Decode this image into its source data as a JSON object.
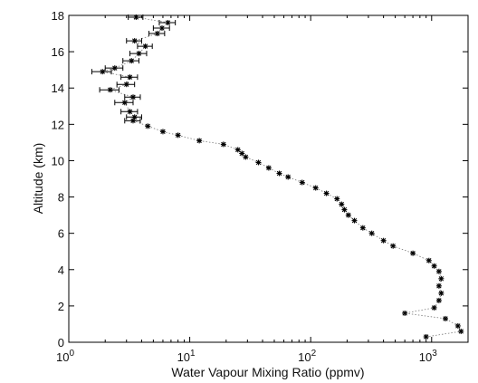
{
  "chart_data": {
    "type": "scatter",
    "title": "",
    "xlabel": "Water Vapour Mixing Ratio (ppmv)",
    "ylabel": "Altitude (km)",
    "xscale": "log",
    "xlim": [
      1,
      2000
    ],
    "ylim": [
      0,
      18
    ],
    "grid": false,
    "legend": "none",
    "x_ticks": [
      1,
      10,
      100,
      1000
    ],
    "x_tick_labels": [
      {
        "base": "10",
        "exp": "0"
      },
      {
        "base": "10",
        "exp": "1"
      },
      {
        "base": "10",
        "exp": "2"
      },
      {
        "base": "10",
        "exp": "3"
      }
    ],
    "y_ticks": [
      0,
      2,
      4,
      6,
      8,
      10,
      12,
      14,
      16,
      18
    ],
    "y_tick_labels": [
      "0",
      "2",
      "4",
      "6",
      "8",
      "10",
      "12",
      "14",
      "16",
      "18"
    ],
    "marker": "star",
    "line_style": "dotted",
    "color": "#000000",
    "points": [
      {
        "x": 900,
        "y": 0.3
      },
      {
        "x": 1750,
        "y": 0.6
      },
      {
        "x": 1650,
        "y": 0.9
      },
      {
        "x": 1300,
        "y": 1.3
      },
      {
        "x": 600,
        "y": 1.6
      },
      {
        "x": 1050,
        "y": 1.9
      },
      {
        "x": 1150,
        "y": 2.3
      },
      {
        "x": 1200,
        "y": 2.7
      },
      {
        "x": 1150,
        "y": 3.1
      },
      {
        "x": 1200,
        "y": 3.5
      },
      {
        "x": 1150,
        "y": 3.9
      },
      {
        "x": 1050,
        "y": 4.2
      },
      {
        "x": 950,
        "y": 4.5
      },
      {
        "x": 700,
        "y": 4.9
      },
      {
        "x": 480,
        "y": 5.3
      },
      {
        "x": 400,
        "y": 5.6
      },
      {
        "x": 320,
        "y": 6.0
      },
      {
        "x": 270,
        "y": 6.3
      },
      {
        "x": 230,
        "y": 6.7
      },
      {
        "x": 205,
        "y": 7.0
      },
      {
        "x": 190,
        "y": 7.3
      },
      {
        "x": 180,
        "y": 7.6
      },
      {
        "x": 165,
        "y": 7.9
      },
      {
        "x": 135,
        "y": 8.2
      },
      {
        "x": 110,
        "y": 8.5
      },
      {
        "x": 85,
        "y": 8.8
      },
      {
        "x": 65,
        "y": 9.1
      },
      {
        "x": 55,
        "y": 9.3
      },
      {
        "x": 45,
        "y": 9.6
      },
      {
        "x": 37,
        "y": 9.9
      },
      {
        "x": 29,
        "y": 10.2
      },
      {
        "x": 27,
        "y": 10.4
      },
      {
        "x": 25,
        "y": 10.6
      },
      {
        "x": 19,
        "y": 10.9
      },
      {
        "x": 12,
        "y": 11.1
      },
      {
        "x": 8,
        "y": 11.4
      },
      {
        "x": 6,
        "y": 11.6
      },
      {
        "x": 4.5,
        "y": 11.9
      }
    ],
    "error_points": [
      {
        "x": 3.4,
        "y": 12.2,
        "xerr": 0.5
      },
      {
        "x": 3.5,
        "y": 12.4,
        "xerr": 0.5
      },
      {
        "x": 3.2,
        "y": 12.7,
        "xerr": 0.5
      },
      {
        "x": 2.9,
        "y": 13.2,
        "xerr": 0.5
      },
      {
        "x": 3.4,
        "y": 13.5,
        "xerr": 0.5
      },
      {
        "x": 2.2,
        "y": 13.9,
        "xerr": 0.4
      },
      {
        "x": 3.0,
        "y": 14.2,
        "xerr": 0.5
      },
      {
        "x": 3.2,
        "y": 14.6,
        "xerr": 0.5
      },
      {
        "x": 1.9,
        "y": 14.9,
        "xerr": 0.35
      },
      {
        "x": 2.4,
        "y": 15.1,
        "xerr": 0.4
      },
      {
        "x": 3.3,
        "y": 15.5,
        "xerr": 0.5
      },
      {
        "x": 3.8,
        "y": 15.9,
        "xerr": 0.6
      },
      {
        "x": 4.3,
        "y": 16.3,
        "xerr": 0.6
      },
      {
        "x": 3.5,
        "y": 16.6,
        "xerr": 0.5
      },
      {
        "x": 5.4,
        "y": 17.0,
        "xerr": 0.8
      },
      {
        "x": 5.9,
        "y": 17.3,
        "xerr": 0.9
      },
      {
        "x": 6.6,
        "y": 17.6,
        "xerr": 1.0
      },
      {
        "x": 3.6,
        "y": 17.9,
        "xerr": 0.5
      }
    ]
  }
}
